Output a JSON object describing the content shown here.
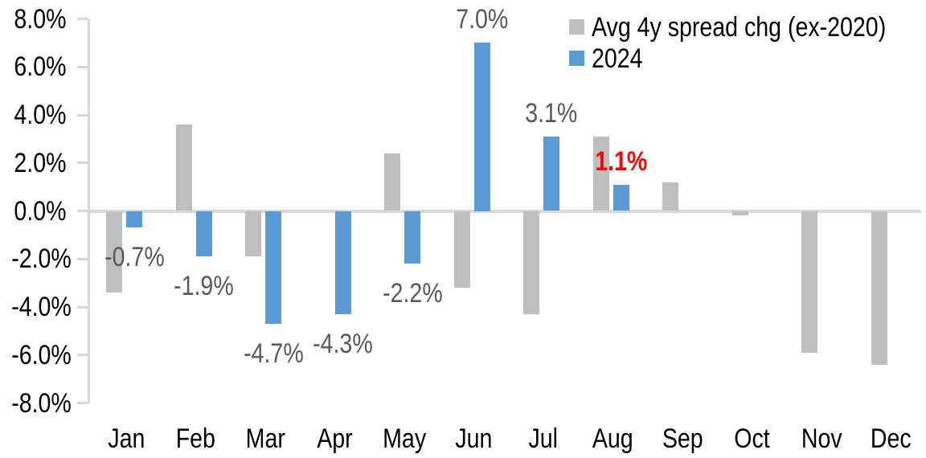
{
  "chart_data": {
    "type": "bar",
    "title": "",
    "categories": [
      "Jan",
      "Feb",
      "Mar",
      "Apr",
      "May",
      "Jun",
      "Jul",
      "Aug",
      "Sep",
      "Oct",
      "Nov",
      "Dec"
    ],
    "series": [
      {
        "name": "Avg 4y spread chg (ex-2020)",
        "color": "#BFBFBF",
        "values": [
          -3.4,
          3.6,
          -1.9,
          0.0,
          2.4,
          -3.2,
          -4.3,
          3.1,
          1.2,
          -0.2,
          -5.9,
          -6.4
        ]
      },
      {
        "name": "2024",
        "color": "#5B9BD5",
        "values": [
          -0.7,
          -1.9,
          -4.7,
          -4.3,
          -2.2,
          7.0,
          3.1,
          1.1,
          null,
          null,
          null,
          null
        ],
        "labels": [
          {
            "text": "-0.7%",
            "color": "#595959",
            "bold": false
          },
          {
            "text": "-1.9%",
            "color": "#595959",
            "bold": false
          },
          {
            "text": "-4.7%",
            "color": "#595959",
            "bold": false
          },
          {
            "text": "-4.3%",
            "color": "#595959",
            "bold": false
          },
          {
            "text": "-2.2%",
            "color": "#595959",
            "bold": false
          },
          {
            "text": "7.0%",
            "color": "#595959",
            "bold": false
          },
          {
            "text": "3.1%",
            "color": "#595959",
            "bold": false
          },
          {
            "text": "1.1%",
            "color": "#FF0000",
            "bold": true
          },
          null,
          null,
          null,
          null
        ]
      }
    ],
    "y_axis": {
      "min": -8,
      "max": 8,
      "step": 2,
      "tick_labels": [
        "8.0%",
        "6.0%",
        "4.0%",
        "2.0%",
        "0.0%",
        "-2.0%",
        "-4.0%",
        "-6.0%",
        "-8.0%"
      ]
    },
    "legend": {
      "position": "top-right",
      "entries": [
        "Avg 4y spread chg (ex-2020)",
        "2024"
      ]
    },
    "grid": false,
    "colors": {
      "axis": "#D9D9D9",
      "tick_text": "#000000",
      "data_label": "#595959",
      "highlight_label": "#FF0000"
    }
  }
}
